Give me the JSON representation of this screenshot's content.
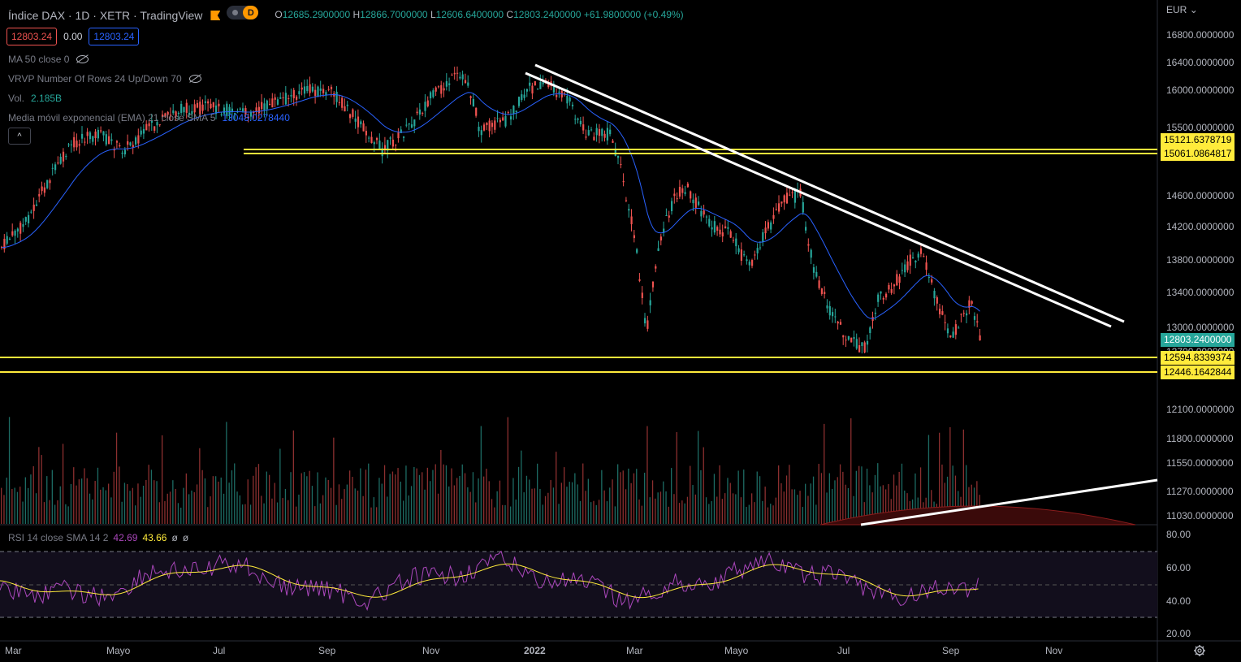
{
  "header": {
    "title": "Índice DAX · 1D · XETR · TradingView",
    "interval_badge": "D",
    "ohlc": {
      "open_label": "O",
      "open": "12685.2900000",
      "high_label": "H",
      "high": "12866.7000000",
      "low_label": "L",
      "low": "12606.6400000",
      "close_label": "C",
      "close": "12803.2400000",
      "change": "+61.9800000 (+0.49%)"
    }
  },
  "order_boxes": {
    "sell": "12803.24",
    "spread": "0.00",
    "buy": "12803.24"
  },
  "indicators": {
    "ma": {
      "label": "MA 50 close 0"
    },
    "vrvp": {
      "label": "VRVP Number Of Rows 24 Up/Down 70"
    },
    "vol": {
      "label": "Vol.",
      "value": "2.185B"
    },
    "ema": {
      "label": "Media móvil exponencial (EMA) 21 close SMA 5",
      "value": "13048.0278440"
    }
  },
  "collapse_button": "^",
  "price_axis": {
    "currency": "EUR",
    "ticks": [
      "16800.0000000",
      "16400.0000000",
      "16000.0000000",
      "15500.0000000",
      "14600.0000000",
      "14200.0000000",
      "13800.0000000",
      "13400.0000000",
      "13000.0000000",
      "12700.0000000",
      "12100.0000000",
      "11800.0000000",
      "11550.0000000",
      "11270.0000000",
      "11030.0000000"
    ],
    "tags": {
      "level1": "15121.6378719",
      "level2": "15061.0864817",
      "last": "12803.2400000",
      "level3": "12594.8339374",
      "level4": "12446.1642844"
    }
  },
  "time_axis": [
    "Mar",
    "Mayo",
    "Jul",
    "Sep",
    "Nov",
    "2022",
    "Mar",
    "Mayo",
    "Jul",
    "Sep",
    "Nov"
  ],
  "rsi": {
    "label": "RSI 14 close SMA 14 2",
    "rsi_value": "42.69",
    "sma_value": "43.66",
    "extra1": "ø",
    "extra2": "ø",
    "ticks": [
      "80.00",
      "60.00",
      "40.00",
      "20.00"
    ]
  },
  "colors": {
    "up": "#26a69a",
    "down": "#ef5350",
    "ema": "#2962ff",
    "support": "#ffeb3b",
    "trend": "#ffffff",
    "rsi": "#ab47bc",
    "rsi_sma": "#ffeb3b"
  },
  "chart_data": {
    "type": "candlestick",
    "key_prices": [
      16300,
      16000,
      15600,
      15100,
      14500,
      14200,
      13800,
      13300,
      12850,
      12500,
      12900,
      13850,
      12800
    ],
    "support_levels": [
      15121.6378719,
      15061.0864817,
      12594.8339374,
      12446.1642844
    ],
    "last_price": 12803.24,
    "rsi_range": [
      20,
      80
    ]
  }
}
